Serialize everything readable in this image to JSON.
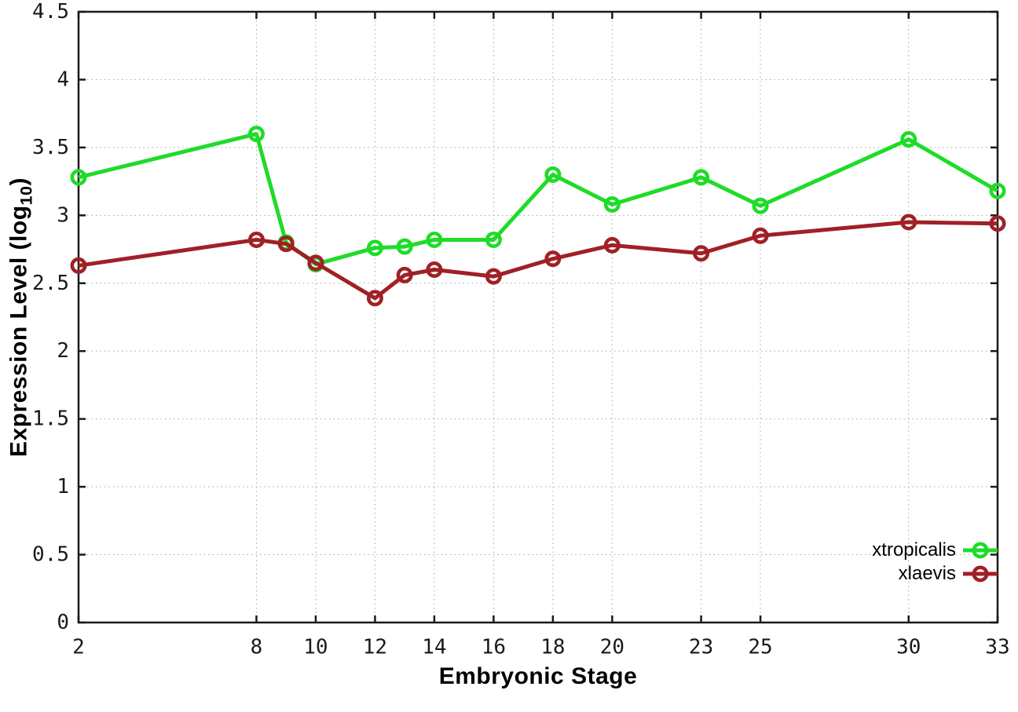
{
  "chart_data": {
    "type": "line",
    "title": "",
    "xlabel": "Embryonic Stage",
    "ylabel": "Expression Level (log10)",
    "ylabel_main": "Expression Level (log",
    "ylabel_sub": "10",
    "ylabel_end": ")",
    "xlim": [
      2,
      33
    ],
    "ylim": [
      0,
      4.5
    ],
    "x_ticks": [
      2,
      8,
      10,
      12,
      14,
      16,
      18,
      20,
      23,
      25,
      30,
      33
    ],
    "y_ticks": [
      0,
      0.5,
      1,
      1.5,
      2,
      2.5,
      3,
      3.5,
      4,
      4.5
    ],
    "grid": true,
    "legend_position": "inside-bottom-right",
    "x": [
      2,
      8,
      9,
      10,
      12,
      13,
      14,
      16,
      18,
      20,
      23,
      25,
      30,
      33
    ],
    "series": [
      {
        "name": "xtropicalis",
        "color": "#1edc28",
        "marker": "open-circle",
        "values": [
          3.28,
          3.6,
          2.8,
          2.64,
          2.76,
          2.77,
          2.82,
          2.82,
          3.3,
          3.08,
          3.28,
          3.07,
          3.56,
          3.18
        ]
      },
      {
        "name": "xlaevis",
        "color": "#a02025",
        "marker": "open-circle",
        "values": [
          2.63,
          2.82,
          2.79,
          2.65,
          2.39,
          2.56,
          2.6,
          2.55,
          2.68,
          2.78,
          2.72,
          2.85,
          2.95,
          2.94
        ]
      }
    ],
    "axis_color": "#1a1a1a",
    "grid_color": "#a8a8a8",
    "tick_label_color": "#1a1a1a"
  }
}
